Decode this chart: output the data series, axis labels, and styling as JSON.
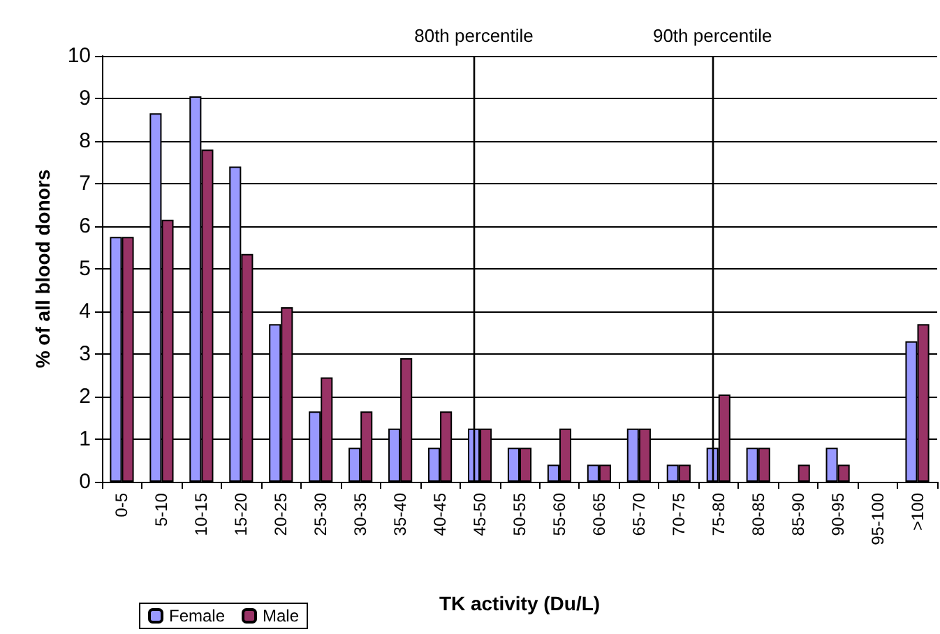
{
  "chart_data": {
    "type": "bar",
    "xlabel": "TK activity (Du/L)",
    "ylabel": "% of all blood donors",
    "categories": [
      "0-5",
      "5-10",
      "10-15",
      "15-20",
      "20-25",
      "25-30",
      "30-35",
      "35-40",
      "40-45",
      "45-50",
      "50-55",
      "55-60",
      "60-65",
      "65-70",
      "70-75",
      "75-80",
      "80-85",
      "85-90",
      "90-95",
      "95-100",
      ">100"
    ],
    "series": [
      {
        "name": "Female",
        "color": "#9999ff",
        "values": [
          5.75,
          8.65,
          9.05,
          7.4,
          3.7,
          1.65,
          0.8,
          1.25,
          0.8,
          1.25,
          0.8,
          0.4,
          0.4,
          1.25,
          0.4,
          0.8,
          0.8,
          null,
          0.8,
          null,
          3.3
        ]
      },
      {
        "name": "Male",
        "color": "#993366",
        "values": [
          5.75,
          6.15,
          7.8,
          5.35,
          4.1,
          2.45,
          1.65,
          2.9,
          1.65,
          1.25,
          0.8,
          1.25,
          0.4,
          1.25,
          0.4,
          2.05,
          0.8,
          0.4,
          0.4,
          null,
          3.7
        ]
      }
    ],
    "ylim": [
      0,
      10
    ],
    "yticks": [
      0,
      1,
      2,
      3,
      4,
      5,
      6,
      7,
      8,
      9,
      10
    ],
    "grid": "y",
    "legend": "bottom left",
    "ref_lines": [
      {
        "axis": "x",
        "value": "45-50",
        "label": "80th percentile",
        "color": "#000000"
      },
      {
        "axis": "x",
        "value": "75-80",
        "label": "90th percentile",
        "color": "#000000"
      }
    ]
  }
}
